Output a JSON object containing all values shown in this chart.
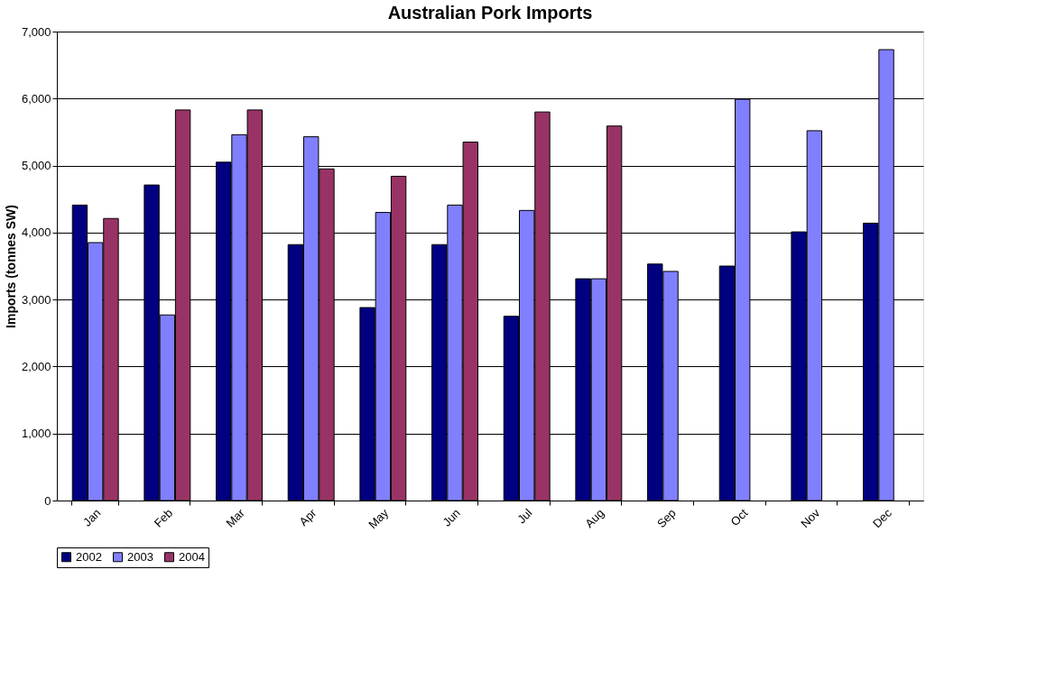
{
  "chart_data": {
    "type": "bar",
    "title": "Australian Pork Imports",
    "ylabel": "Imports (tonnes SW)",
    "categories": [
      "Jan",
      "Feb",
      "Mar",
      "Apr",
      "May",
      "Jun",
      "Jul",
      "Aug",
      "Sep",
      "Oct",
      "Nov",
      "Dec"
    ],
    "series": [
      {
        "name": "2002",
        "color": "#000080",
        "values": [
          4410,
          4710,
          5050,
          3820,
          2880,
          3820,
          2750,
          3310,
          3530,
          3500,
          4010,
          4140
        ]
      },
      {
        "name": "2003",
        "color": "#8080ff",
        "values": [
          3850,
          2770,
          5460,
          5430,
          4300,
          4410,
          4330,
          3310,
          3420,
          5990,
          5520,
          6730
        ]
      },
      {
        "name": "2004",
        "color": "#993366",
        "values": [
          4210,
          5830,
          5830,
          4950,
          4840,
          5350,
          5800,
          5590,
          null,
          null,
          null,
          null
        ]
      }
    ],
    "ylim": [
      0,
      7000
    ],
    "yticks": [
      {
        "value": 0,
        "label": "0"
      },
      {
        "value": 1000,
        "label": "1,000"
      },
      {
        "value": 2000,
        "label": "2,000"
      },
      {
        "value": 3000,
        "label": "3,000"
      },
      {
        "value": 4000,
        "label": "4,000"
      },
      {
        "value": 5000,
        "label": "5,000"
      },
      {
        "value": 6000,
        "label": "6,000"
      },
      {
        "value": 7000,
        "label": "7,000"
      }
    ],
    "grid": "y",
    "legend": "bottom"
  }
}
